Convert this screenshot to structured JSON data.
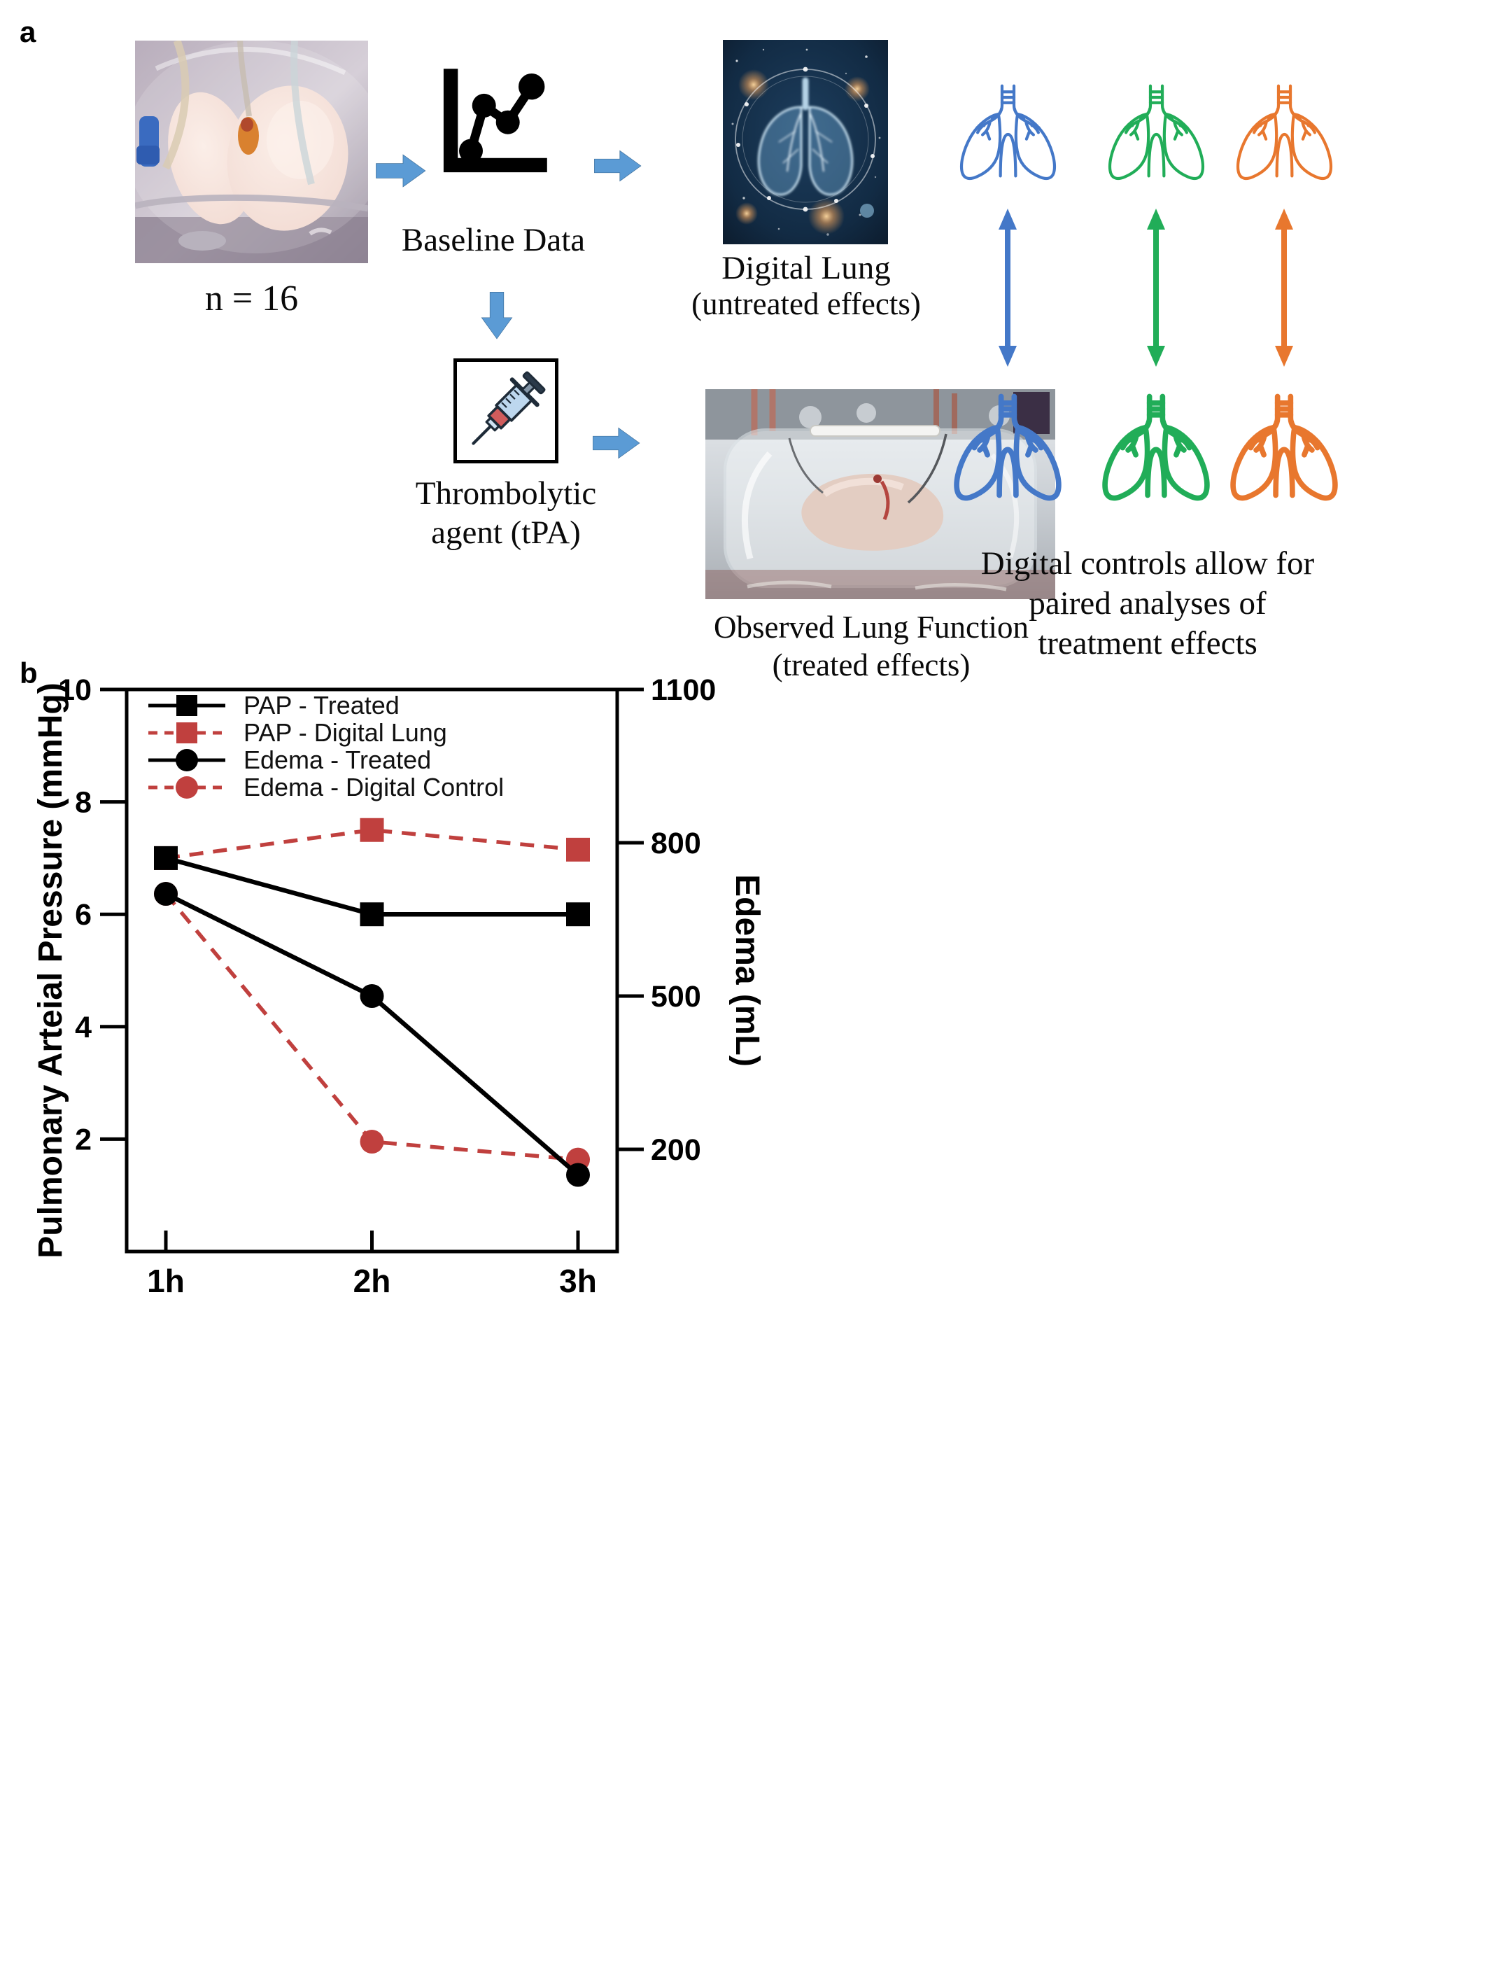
{
  "panel_a": {
    "label": "a",
    "sample_size": "n = 16",
    "baseline_label": "Baseline Data",
    "digital_lung_caption": [
      "Digital Lung",
      "(untreated effects)"
    ],
    "thrombolytic_caption": [
      "Thrombolytic",
      "agent (tPA)"
    ],
    "observed_caption": [
      "Observed Lung Function",
      "(treated effects)"
    ],
    "paired_caption": [
      "Digital controls allow for",
      "paired analyses of",
      "treatment effects"
    ],
    "lung_pair_colors": [
      "#4478C8",
      "#21AD58",
      "#E8772E"
    ],
    "flow_arrow_fill": "#5B9BD5",
    "flow_arrow_stroke": "#41719C"
  },
  "panel_b": {
    "label": "b"
  },
  "chart_data": {
    "type": "line",
    "x_categories": [
      "1h",
      "2h",
      "3h"
    ],
    "left_axis": {
      "label": "Pulmonary Arteial Pressure (mmHg)",
      "min": 0,
      "max": 10,
      "ticks": [
        2,
        4,
        6,
        8,
        10
      ]
    },
    "right_axis": {
      "label": "Edema (mL)",
      "min": 0,
      "max": 1100,
      "ticks": [
        200,
        500,
        800,
        1100
      ]
    },
    "grid": false,
    "legend_position": "top-left",
    "colors": {
      "treated": "#000000",
      "digital": "#C0403E"
    },
    "series": [
      {
        "name": "PAP - Treated",
        "axis": "left",
        "color": "#000000",
        "line": "solid",
        "marker": "square",
        "values": [
          7.0,
          6.0,
          6.0
        ]
      },
      {
        "name": "PAP - Digital Lung",
        "axis": "left",
        "color": "#C0403E",
        "line": "dashed",
        "marker": "square",
        "values": [
          7.0,
          7.5,
          7.15
        ]
      },
      {
        "name": "Edema - Treated",
        "axis": "right",
        "color": "#000000",
        "line": "solid",
        "marker": "circle",
        "values": [
          700,
          500,
          150
        ]
      },
      {
        "name": "Edema - Digital Control",
        "axis": "right",
        "color": "#C0403E",
        "line": "dashed",
        "marker": "circle",
        "values": [
          700,
          215,
          180
        ]
      }
    ]
  }
}
